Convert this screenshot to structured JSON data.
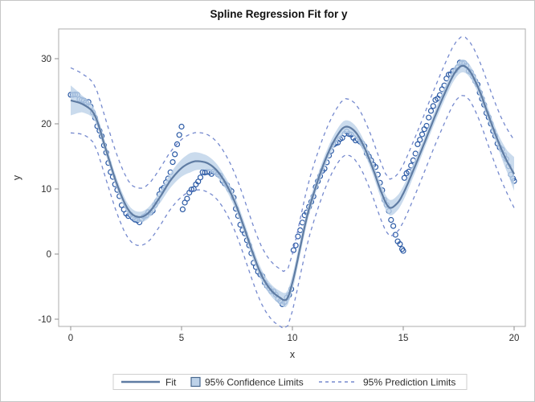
{
  "colors": {
    "marker": "#2B5AA5",
    "fit_line": "#5F7CA3",
    "confidence_band": "#BDD2E9",
    "prediction_line": "#7589CE",
    "plot_frame": "#ADADAD",
    "tick": "#8C8C8C",
    "text": "#2E2E2E",
    "legend_border": "#CFCFCF",
    "outer_border": "#C6C6C6",
    "background": "#FFFFFF"
  },
  "chart_data": {
    "type": "scatter",
    "title": "Spline Regression Fit for y",
    "xlabel": "x",
    "ylabel": "y",
    "x_ticks": [
      0,
      5,
      10,
      15,
      20
    ],
    "y_ticks": [
      -10,
      0,
      10,
      20,
      30
    ],
    "xlim": [
      -0.55,
      20.5
    ],
    "ylim": [
      -11.1,
      34.6
    ],
    "grid": false,
    "legend": {
      "position": "bottom-center",
      "fit": "Fit",
      "confidence": "95% Confidence Limits",
      "prediction": "95% Prediction Limits"
    },
    "scatter_segments": [
      {
        "points": [
          [
            0,
            24.3
          ],
          [
            0.35,
            24.2
          ],
          [
            0.7,
            23.3
          ],
          [
            1.0,
            21.9
          ],
          [
            1.3,
            18.9
          ],
          [
            1.6,
            15.4
          ],
          [
            1.9,
            11.8
          ],
          [
            2.2,
            8.6
          ],
          [
            2.5,
            6.4
          ],
          [
            2.8,
            5.4
          ],
          [
            3.1,
            5.3
          ],
          [
            3.4,
            5.8
          ],
          [
            3.7,
            7.0
          ],
          [
            4.0,
            8.9
          ],
          [
            4.3,
            11.1
          ],
          [
            4.6,
            13.8
          ],
          [
            4.9,
            18.3
          ],
          [
            5.0,
            20.0
          ]
        ]
      },
      {
        "points": [
          [
            5.05,
            7.2
          ],
          [
            5.4,
            9.4
          ],
          [
            5.8,
            11.6
          ],
          [
            6.1,
            12.5
          ],
          [
            6.4,
            12.7
          ],
          [
            6.7,
            11.9
          ],
          [
            7.0,
            10.9
          ],
          [
            7.3,
            8.9
          ],
          [
            7.5,
            6.5
          ],
          [
            7.8,
            3.3
          ],
          [
            8.1,
            0.7
          ],
          [
            8.4,
            -2.4
          ],
          [
            8.7,
            -4.0
          ],
          [
            9.0,
            -5.3
          ],
          [
            9.25,
            -6.5
          ],
          [
            9.5,
            -7.3
          ],
          [
            9.75,
            -6.9
          ],
          [
            9.95,
            -5.7
          ]
        ]
      },
      {
        "points": [
          [
            10.05,
            0.6
          ],
          [
            10.3,
            3.3
          ],
          [
            10.6,
            6.0
          ],
          [
            10.9,
            8.7
          ],
          [
            11.2,
            11.4
          ],
          [
            11.5,
            13.9
          ],
          [
            11.8,
            16.1
          ],
          [
            12.1,
            17.6
          ],
          [
            12.4,
            18.4
          ],
          [
            12.7,
            18.2
          ],
          [
            13.0,
            17.3
          ],
          [
            13.3,
            16.1
          ],
          [
            13.6,
            14.1
          ],
          [
            13.9,
            11.6
          ],
          [
            14.2,
            8.1
          ],
          [
            14.5,
            4.6
          ],
          [
            14.8,
            1.9
          ],
          [
            15.0,
            0.4
          ]
        ]
      },
      {
        "points": [
          [
            15.05,
            11.4
          ],
          [
            15.3,
            13.3
          ],
          [
            15.6,
            16.0
          ],
          [
            15.9,
            18.8
          ],
          [
            16.2,
            21.4
          ],
          [
            16.5,
            23.7
          ],
          [
            16.8,
            25.7
          ],
          [
            17.1,
            27.5
          ],
          [
            17.4,
            28.7
          ],
          [
            17.7,
            29.2
          ],
          [
            18.0,
            28.3
          ],
          [
            18.3,
            26.0
          ],
          [
            18.6,
            23.6
          ],
          [
            18.9,
            20.2
          ],
          [
            19.2,
            17.7
          ],
          [
            19.5,
            15.5
          ],
          [
            19.8,
            13.0
          ],
          [
            20.0,
            11.3
          ]
        ]
      }
    ],
    "fit_points": [
      [
        0,
        23.6
      ],
      [
        0.6,
        22.9
      ],
      [
        1.1,
        21.2
      ],
      [
        1.6,
        15.9
      ],
      [
        2.1,
        10.6
      ],
      [
        2.6,
        6.8
      ],
      [
        3.05,
        5.7
      ],
      [
        3.5,
        6.3
      ],
      [
        4.0,
        8.6
      ],
      [
        4.5,
        11.3
      ],
      [
        5.0,
        13.2
      ],
      [
        5.45,
        14.1
      ],
      [
        5.8,
        14.25
      ],
      [
        6.2,
        13.9
      ],
      [
        6.6,
        12.8
      ],
      [
        7.0,
        10.8
      ],
      [
        7.4,
        8.0
      ],
      [
        7.8,
        4.3
      ],
      [
        8.2,
        0.3
      ],
      [
        8.6,
        -3.2
      ],
      [
        9.0,
        -5.4
      ],
      [
        9.4,
        -6.6
      ],
      [
        9.75,
        -6.9
      ],
      [
        10.05,
        -3.7
      ],
      [
        10.35,
        1.0
      ],
      [
        10.7,
        6.3
      ],
      [
        11.1,
        10.8
      ],
      [
        11.5,
        14.6
      ],
      [
        11.9,
        17.5
      ],
      [
        12.35,
        19.5
      ],
      [
        12.8,
        18.9
      ],
      [
        13.2,
        16.7
      ],
      [
        13.6,
        13.4
      ],
      [
        14.0,
        9.6
      ],
      [
        14.35,
        7.2
      ],
      [
        14.7,
        7.7
      ],
      [
        15.0,
        9.3
      ],
      [
        15.4,
        12.4
      ],
      [
        15.9,
        16.6
      ],
      [
        16.4,
        20.9
      ],
      [
        16.9,
        24.9
      ],
      [
        17.3,
        27.7
      ],
      [
        17.65,
        28.9
      ],
      [
        18.0,
        28.1
      ],
      [
        18.4,
        25.4
      ],
      [
        18.8,
        21.7
      ],
      [
        19.2,
        18.0
      ],
      [
        19.6,
        14.8
      ],
      [
        20.0,
        12.3
      ]
    ],
    "ci_halfwidth_points": [
      [
        0,
        2.3
      ],
      [
        0.5,
        1.3
      ],
      [
        1,
        0.9
      ],
      [
        2,
        0.8
      ],
      [
        3,
        0.8
      ],
      [
        4,
        0.9
      ],
      [
        4.7,
        1.2
      ],
      [
        5.4,
        1.5
      ],
      [
        6,
        1.2
      ],
      [
        6.8,
        0.9
      ],
      [
        8,
        0.9
      ],
      [
        9,
        0.9
      ],
      [
        9.7,
        1.1
      ],
      [
        10.2,
        1.2
      ],
      [
        11,
        0.9
      ],
      [
        12.35,
        1.0
      ],
      [
        13.5,
        0.9
      ],
      [
        14.35,
        1.2
      ],
      [
        15,
        1.1
      ],
      [
        16,
        0.9
      ],
      [
        17.65,
        1.0
      ],
      [
        18.5,
        0.9
      ],
      [
        19.3,
        1.1
      ],
      [
        19.7,
        1.7
      ],
      [
        20,
        2.6
      ]
    ],
    "pl_halfwidth_points": [
      [
        0,
        5.0
      ],
      [
        0.6,
        4.6
      ],
      [
        3,
        4.4
      ],
      [
        6,
        4.4
      ],
      [
        9,
        4.4
      ],
      [
        12,
        4.3
      ],
      [
        15,
        4.4
      ],
      [
        18,
        4.5
      ],
      [
        19.5,
        4.8
      ],
      [
        20,
        5.2
      ]
    ],
    "marker_step": 0.1,
    "scatter_jitter": {
      "amp1": 0.28,
      "freq1": 9.7,
      "amp2": 0.16,
      "freq2": 23.3,
      "phase": 1.3
    }
  }
}
